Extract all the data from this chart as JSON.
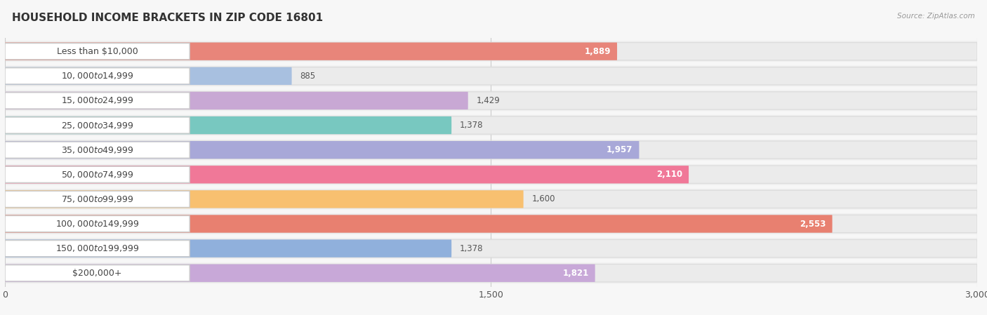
{
  "title": "HOUSEHOLD INCOME BRACKETS IN ZIP CODE 16801",
  "source": "Source: ZipAtlas.com",
  "categories": [
    "Less than $10,000",
    "$10,000 to $14,999",
    "$15,000 to $24,999",
    "$25,000 to $34,999",
    "$35,000 to $49,999",
    "$50,000 to $74,999",
    "$75,000 to $99,999",
    "$100,000 to $149,999",
    "$150,000 to $199,999",
    "$200,000+"
  ],
  "values": [
    1889,
    885,
    1429,
    1378,
    1957,
    2110,
    1600,
    2553,
    1378,
    1821
  ],
  "bar_colors": [
    "#E8857A",
    "#A8C0E0",
    "#C8A8D4",
    "#78C8C0",
    "#A8A8D8",
    "#F07898",
    "#F8C070",
    "#E88070",
    "#90B0DC",
    "#C8A8D8"
  ],
  "label_inside": [
    true,
    false,
    false,
    false,
    true,
    true,
    false,
    true,
    false,
    true
  ],
  "xlim": [
    0,
    3000
  ],
  "xticks": [
    0,
    1500,
    3000
  ],
  "background_color": "#f7f7f7",
  "bar_bg_color": "#ebebeb",
  "row_bg_color": "#f0f0f0",
  "title_fontsize": 11,
  "label_fontsize": 9,
  "value_fontsize": 8.5
}
